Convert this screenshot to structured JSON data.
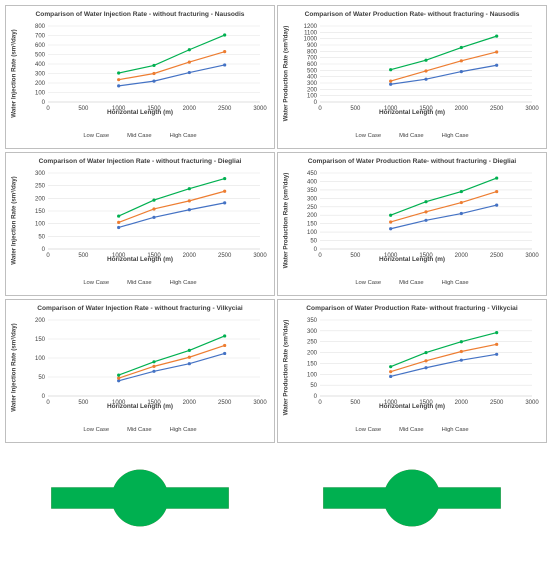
{
  "legend_colors": {
    "Low Case": "#4472c4",
    "Mid Case": "#ed7d31",
    "High Case": "#00b050"
  },
  "chart_data": [
    {
      "type": "line",
      "title": "Comparison of Water Injection Rate - without fracturing - Nausodis",
      "xlabel": "Horizontal Length (m)",
      "ylabel": "Water Injection Rate (sm³/day)",
      "xlim": [
        0,
        3000
      ],
      "ylim": [
        0,
        800
      ],
      "xticks": [
        0,
        500,
        1000,
        1500,
        2000,
        2500,
        3000
      ],
      "yticks": [
        0,
        100,
        200,
        300,
        400,
        500,
        600,
        700,
        800
      ],
      "x": [
        1000,
        1500,
        2000,
        2500
      ],
      "series": [
        {
          "name": "Low Case",
          "values": [
            170,
            220,
            310,
            390
          ]
        },
        {
          "name": "Mid Case",
          "values": [
            235,
            300,
            420,
            530
          ]
        },
        {
          "name": "High Case",
          "values": [
            305,
            385,
            550,
            705
          ]
        }
      ],
      "legend": "bottom"
    },
    {
      "type": "line",
      "title": "Comparison of Water Production Rate- without fracturing - Nausodis",
      "xlabel": "Horizontal Length (m)",
      "ylabel": "Water Production Rate (sm³/day)",
      "xlim": [
        0,
        3000
      ],
      "ylim": [
        0,
        1200
      ],
      "xticks": [
        0,
        500,
        1000,
        1500,
        2000,
        2500,
        3000
      ],
      "yticks": [
        0,
        100,
        200,
        300,
        400,
        500,
        600,
        700,
        800,
        900,
        1000,
        1100,
        1200
      ],
      "x": [
        1000,
        1500,
        2000,
        2500
      ],
      "series": [
        {
          "name": "Low Case",
          "values": [
            280,
            360,
            480,
            580
          ]
        },
        {
          "name": "Mid Case",
          "values": [
            330,
            490,
            650,
            790
          ]
        },
        {
          "name": "High Case",
          "values": [
            510,
            660,
            860,
            1040
          ]
        }
      ],
      "legend": "bottom"
    },
    {
      "type": "line",
      "title": "Comparison of Water Injection Rate - without fracturing - Diegliai",
      "xlabel": "Horizontal Length (m)",
      "ylabel": "Water Injection Rate (sm³/day)",
      "xlim": [
        0,
        3000
      ],
      "ylim": [
        0,
        300
      ],
      "xticks": [
        0,
        500,
        1000,
        1500,
        2000,
        2500,
        3000
      ],
      "yticks": [
        0,
        50,
        100,
        150,
        200,
        250,
        300
      ],
      "x": [
        1000,
        1500,
        2000,
        2500
      ],
      "series": [
        {
          "name": "Low Case",
          "values": [
            85,
            125,
            155,
            182
          ]
        },
        {
          "name": "Mid Case",
          "values": [
            105,
            158,
            190,
            228
          ]
        },
        {
          "name": "High Case",
          "values": [
            130,
            193,
            238,
            278
          ]
        }
      ],
      "legend": "bottom"
    },
    {
      "type": "line",
      "title": "Comparison of Water Production Rate- without fracturing - Diegliai",
      "xlabel": "Horizontal Length (m)",
      "ylabel": "Water Production Rate (sm³/day)",
      "xlim": [
        0,
        3000
      ],
      "ylim": [
        0,
        450
      ],
      "xticks": [
        0,
        500,
        1000,
        1500,
        2000,
        2500,
        3000
      ],
      "yticks": [
        0,
        50,
        100,
        150,
        200,
        250,
        300,
        350,
        400,
        450
      ],
      "x": [
        1000,
        1500,
        2000,
        2500
      ],
      "series": [
        {
          "name": "Low Case",
          "values": [
            120,
            170,
            210,
            260
          ]
        },
        {
          "name": "Mid Case",
          "values": [
            160,
            220,
            275,
            340
          ]
        },
        {
          "name": "High Case",
          "values": [
            200,
            280,
            340,
            420
          ]
        }
      ],
      "legend": "bottom"
    },
    {
      "type": "line",
      "title": "Comparison of Water Injection Rate - without fracturing - Vilkyciai",
      "xlabel": "Horizontal Length (m)",
      "ylabel": "Water Injection Rate (sm³/day)",
      "xlim": [
        0,
        3000
      ],
      "ylim": [
        0,
        200
      ],
      "xticks": [
        0,
        500,
        1000,
        1500,
        2000,
        2500,
        3000
      ],
      "yticks": [
        0,
        50,
        100,
        150,
        200
      ],
      "x": [
        1000,
        1500,
        2000,
        2500
      ],
      "series": [
        {
          "name": "Low Case",
          "values": [
            40,
            65,
            85,
            112
          ]
        },
        {
          "name": "Mid Case",
          "values": [
            47,
            78,
            102,
            133
          ]
        },
        {
          "name": "High Case",
          "values": [
            55,
            90,
            120,
            158
          ]
        }
      ],
      "legend": "bottom"
    },
    {
      "type": "line",
      "title": "Comparison of Water Production Rate- without fracturing - Vilkyciai",
      "xlabel": "Horizontal Length (m)",
      "ylabel": "Water Production Rate (sm³/day)",
      "xlim": [
        0,
        3000
      ],
      "ylim": [
        0,
        350
      ],
      "xticks": [
        0,
        500,
        1000,
        1500,
        2000,
        2500,
        3000
      ],
      "yticks": [
        0,
        50,
        100,
        150,
        200,
        250,
        300,
        350
      ],
      "x": [
        1000,
        1500,
        2000,
        2500
      ],
      "series": [
        {
          "name": "Low Case",
          "values": [
            90,
            130,
            165,
            192
          ]
        },
        {
          "name": "Mid Case",
          "values": [
            112,
            162,
            205,
            238
          ]
        },
        {
          "name": "High Case",
          "values": [
            135,
            200,
            250,
            292
          ]
        }
      ],
      "legend": "bottom"
    }
  ]
}
